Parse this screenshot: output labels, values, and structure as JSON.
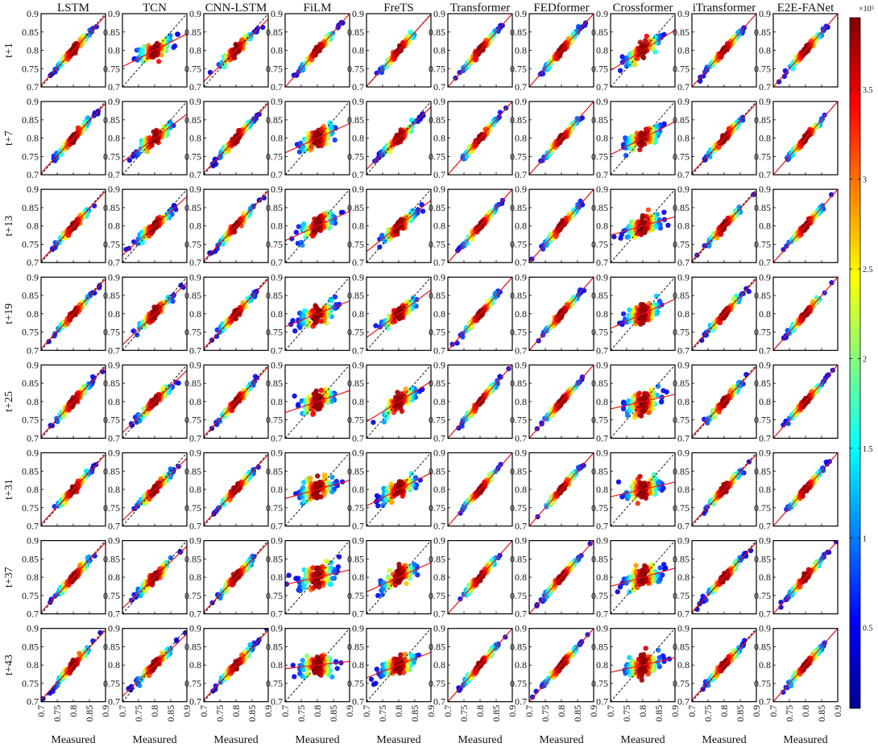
{
  "chart_data": {
    "type": "scatter",
    "subtype": "density-colored scatter grid (predicted vs measured), with red fit line and dashed y=x reference",
    "columns": [
      "LSTM",
      "TCN",
      "CNN-LSTM",
      "FiLM",
      "FreTS",
      "Transformer",
      "FEDformer",
      "Crossformer",
      "iTransformer",
      "E2E-FANet"
    ],
    "rows": [
      "t+1",
      "t+7",
      "t+13",
      "t+19",
      "t+25",
      "t+31",
      "t+37",
      "t+43"
    ],
    "xlabel": "Measured",
    "xlim": [
      0.7,
      0.9
    ],
    "ylim": [
      0.7,
      0.9
    ],
    "xticks": [
      "0.7",
      "0.75",
      "0.8",
      "0.85",
      "0.9"
    ],
    "yticks": [
      "0.7",
      "0.75",
      "0.8",
      "0.85",
      "0.9"
    ],
    "grid": false,
    "fit_slopes": [
      [
        0.95,
        0.45,
        0.85,
        1.0,
        0.98,
        1.0,
        1.0,
        0.55,
        1.0,
        1.0
      ],
      [
        0.95,
        0.65,
        0.95,
        0.4,
        0.85,
        1.0,
        1.0,
        0.45,
        0.95,
        1.0
      ],
      [
        0.95,
        0.8,
        0.95,
        0.4,
        0.7,
        1.0,
        1.0,
        0.25,
        0.95,
        1.0
      ],
      [
        0.95,
        0.85,
        0.95,
        0.35,
        0.65,
        1.0,
        1.0,
        0.4,
        0.95,
        1.0
      ],
      [
        0.95,
        0.85,
        0.95,
        0.3,
        0.55,
        1.0,
        1.0,
        0.2,
        0.95,
        1.0
      ],
      [
        0.95,
        0.85,
        0.95,
        0.25,
        0.45,
        1.0,
        1.0,
        0.2,
        0.95,
        1.0
      ],
      [
        0.95,
        0.85,
        0.95,
        0.2,
        0.4,
        1.0,
        1.0,
        0.25,
        0.95,
        1.0
      ],
      [
        0.95,
        0.85,
        0.95,
        0.1,
        0.35,
        1.0,
        1.0,
        0.2,
        0.95,
        1.0
      ]
    ],
    "colorbar": {
      "colormap": "jet",
      "ticks": [
        "0.5",
        "1",
        "1.5",
        "2",
        "2.5",
        "3",
        "3.5"
      ],
      "min": 0.05,
      "max": 3.9,
      "multiplier": "×10⁵"
    },
    "colors": {
      "fit_line": "#e8141b",
      "reference_line": "#000000",
      "frame": "#000000"
    }
  }
}
